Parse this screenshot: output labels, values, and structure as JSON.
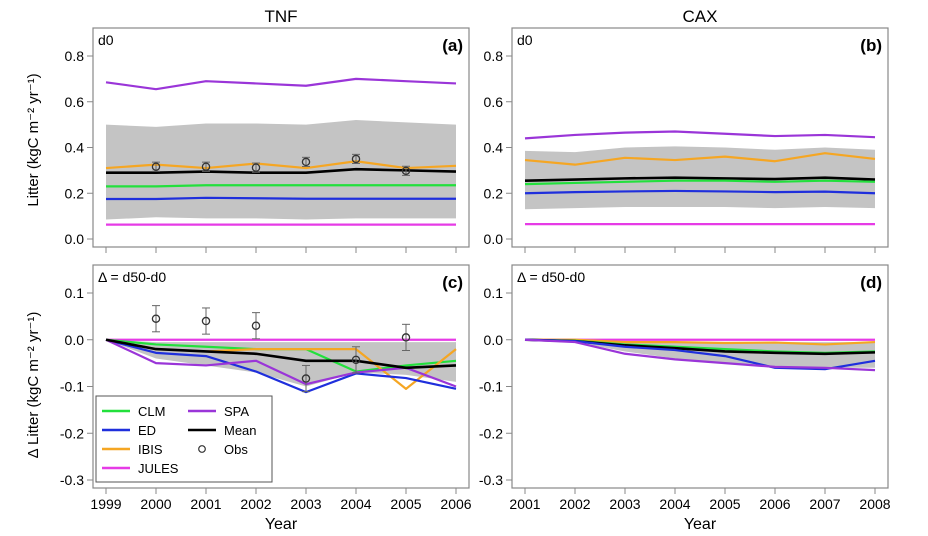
{
  "columns": [
    {
      "title": "TNF",
      "years": [
        1999,
        2000,
        2001,
        2002,
        2003,
        2004,
        2005,
        2006
      ]
    },
    {
      "title": "CAX",
      "years": [
        2001,
        2002,
        2003,
        2004,
        2005,
        2006,
        2007,
        2008
      ]
    }
  ],
  "xlabel": "Year",
  "ylabel_top": "Litter (kgC m⁻² yr⁻¹)",
  "ylabel_bottom": "Δ Litter (kgC m⁻² yr⁻¹)",
  "colors": {
    "CLM": "#22e03c",
    "ED": "#1f2fdc",
    "IBIS": "#f5a623",
    "JULES": "#e63be6",
    "SPA": "#9a35d8",
    "Mean": "#000000",
    "Obs": "#555555",
    "band": "#c4c4c4"
  },
  "legend": {
    "entries": [
      {
        "label": "CLM",
        "series": "CLM",
        "kind": "line"
      },
      {
        "label": "SPA",
        "series": "SPA",
        "kind": "line"
      },
      {
        "label": "ED",
        "series": "ED",
        "kind": "line"
      },
      {
        "label": "Mean",
        "series": "Mean",
        "kind": "line"
      },
      {
        "label": "IBIS",
        "series": "IBIS",
        "kind": "line"
      },
      {
        "label": "Obs",
        "series": "Obs",
        "kind": "marker"
      },
      {
        "label": "JULES",
        "series": "JULES",
        "kind": "line"
      }
    ]
  },
  "chart_data": [
    {
      "type": "line",
      "panel": "(a)",
      "annotation": "d0",
      "column": "TNF",
      "x": [
        1999,
        2000,
        2001,
        2002,
        2003,
        2004,
        2005,
        2006
      ],
      "xlim": [
        1999,
        2006
      ],
      "ylim": [
        0.0,
        0.8
      ],
      "yticks": [
        0.0,
        0.2,
        0.4,
        0.6,
        0.8
      ],
      "band": {
        "upper": [
          0.5,
          0.49,
          0.505,
          0.505,
          0.5,
          0.52,
          0.51,
          0.5
        ],
        "lower": [
          0.085,
          0.095,
          0.09,
          0.09,
          0.085,
          0.09,
          0.09,
          0.09
        ]
      },
      "series": [
        {
          "name": "SPA",
          "values": [
            0.685,
            0.655,
            0.69,
            0.68,
            0.67,
            0.7,
            0.69,
            0.68
          ]
        },
        {
          "name": "IBIS",
          "values": [
            0.31,
            0.325,
            0.31,
            0.33,
            0.31,
            0.34,
            0.31,
            0.32
          ]
        },
        {
          "name": "Mean",
          "values": [
            0.29,
            0.29,
            0.295,
            0.29,
            0.29,
            0.305,
            0.3,
            0.295
          ]
        },
        {
          "name": "CLM",
          "values": [
            0.23,
            0.23,
            0.235,
            0.235,
            0.235,
            0.235,
            0.235,
            0.235
          ]
        },
        {
          "name": "ED",
          "values": [
            0.175,
            0.175,
            0.18,
            0.178,
            0.176,
            0.176,
            0.176,
            0.176
          ]
        },
        {
          "name": "JULES",
          "values": [
            0.063,
            0.063,
            0.063,
            0.063,
            0.063,
            0.063,
            0.063,
            0.063
          ]
        }
      ],
      "obs": {
        "x": [
          2000,
          2001,
          2002,
          2003,
          2004,
          2005
        ],
        "y": [
          0.316,
          0.316,
          0.312,
          0.337,
          0.35,
          0.298
        ],
        "err": [
          0.02,
          0.02,
          0.02,
          0.02,
          0.02,
          0.02
        ]
      }
    },
    {
      "type": "line",
      "panel": "(b)",
      "annotation": "d0",
      "column": "CAX",
      "x": [
        2001,
        2002,
        2003,
        2004,
        2005,
        2006,
        2007,
        2008
      ],
      "xlim": [
        2001,
        2008
      ],
      "ylim": [
        0.0,
        0.8
      ],
      "yticks": [
        0.0,
        0.2,
        0.4,
        0.6,
        0.8
      ],
      "band": {
        "upper": [
          0.385,
          0.38,
          0.4,
          0.405,
          0.4,
          0.39,
          0.4,
          0.39
        ],
        "lower": [
          0.13,
          0.135,
          0.14,
          0.14,
          0.14,
          0.135,
          0.14,
          0.135
        ]
      },
      "series": [
        {
          "name": "SPA",
          "values": [
            0.44,
            0.455,
            0.465,
            0.47,
            0.46,
            0.45,
            0.455,
            0.445
          ]
        },
        {
          "name": "IBIS",
          "values": [
            0.345,
            0.325,
            0.355,
            0.345,
            0.36,
            0.34,
            0.375,
            0.35
          ]
        },
        {
          "name": "Mean",
          "values": [
            0.255,
            0.26,
            0.265,
            0.268,
            0.265,
            0.262,
            0.268,
            0.26
          ]
        },
        {
          "name": "CLM",
          "values": [
            0.24,
            0.245,
            0.25,
            0.255,
            0.255,
            0.25,
            0.255,
            0.25
          ]
        },
        {
          "name": "ED",
          "values": [
            0.2,
            0.205,
            0.208,
            0.21,
            0.208,
            0.205,
            0.207,
            0.2
          ]
        },
        {
          "name": "JULES",
          "values": [
            0.065,
            0.065,
            0.065,
            0.065,
            0.065,
            0.065,
            0.065,
            0.065
          ]
        }
      ]
    },
    {
      "type": "line",
      "panel": "(c)",
      "annotation": "Δ = d50-d0",
      "column": "TNF",
      "x": [
        1999,
        2000,
        2001,
        2002,
        2003,
        2004,
        2005,
        2006
      ],
      "xlim": [
        1999,
        2006
      ],
      "ylim": [
        -0.3,
        0.1
      ],
      "yticks": [
        -0.3,
        -0.2,
        -0.1,
        0.0,
        0.1
      ],
      "band": {
        "upper": [
          0.0,
          -0.005,
          -0.005,
          -0.005,
          -0.005,
          -0.005,
          -0.005,
          -0.005
        ],
        "lower": [
          0.0,
          -0.04,
          -0.055,
          -0.07,
          -0.1,
          -0.07,
          -0.075,
          -0.09
        ]
      },
      "series": [
        {
          "name": "JULES",
          "values": [
            0.0,
            0.0,
            0.0,
            0.0,
            0.0,
            0.0,
            0.0,
            0.0
          ]
        },
        {
          "name": "CLM",
          "values": [
            0.0,
            -0.01,
            -0.015,
            -0.02,
            -0.02,
            -0.068,
            -0.055,
            -0.045
          ]
        },
        {
          "name": "IBIS",
          "values": [
            0.0,
            -0.02,
            -0.025,
            -0.02,
            -0.02,
            -0.02,
            -0.105,
            -0.02
          ]
        },
        {
          "name": "ED",
          "values": [
            0.0,
            -0.028,
            -0.035,
            -0.068,
            -0.112,
            -0.072,
            -0.082,
            -0.105
          ]
        },
        {
          "name": "SPA",
          "values": [
            0.0,
            -0.05,
            -0.055,
            -0.045,
            -0.095,
            -0.07,
            -0.06,
            -0.1
          ]
        },
        {
          "name": "Mean",
          "values": [
            0.0,
            -0.02,
            -0.025,
            -0.03,
            -0.045,
            -0.045,
            -0.06,
            -0.055
          ]
        }
      ],
      "obs": {
        "x": [
          2000,
          2001,
          2002,
          2003,
          2004,
          2005
        ],
        "y": [
          0.045,
          0.04,
          0.03,
          -0.083,
          -0.043,
          0.005
        ],
        "err": [
          0.028,
          0.028,
          0.028,
          0.028,
          0.028,
          0.028
        ]
      }
    },
    {
      "type": "line",
      "panel": "(d)",
      "annotation": "Δ = d50-d0",
      "column": "CAX",
      "x": [
        2001,
        2002,
        2003,
        2004,
        2005,
        2006,
        2007,
        2008
      ],
      "xlim": [
        2001,
        2008
      ],
      "ylim": [
        -0.3,
        0.1
      ],
      "yticks": [
        -0.3,
        -0.2,
        -0.1,
        0.0,
        0.1
      ],
      "band": {
        "upper": [
          0.0,
          0.0,
          -0.003,
          -0.005,
          -0.005,
          -0.005,
          -0.005,
          -0.005
        ],
        "lower": [
          0.0,
          -0.005,
          -0.025,
          -0.04,
          -0.05,
          -0.058,
          -0.06,
          -0.06
        ]
      },
      "series": [
        {
          "name": "JULES",
          "values": [
            0.0,
            0.0,
            0.0,
            0.0,
            0.0,
            0.0,
            0.0,
            0.0
          ]
        },
        {
          "name": "IBIS",
          "values": [
            0.0,
            0.0,
            -0.005,
            -0.005,
            -0.007,
            -0.006,
            -0.01,
            -0.005
          ]
        },
        {
          "name": "CLM",
          "values": [
            0.0,
            -0.002,
            -0.01,
            -0.015,
            -0.02,
            -0.025,
            -0.028,
            -0.025
          ]
        },
        {
          "name": "Mean",
          "values": [
            0.0,
            -0.003,
            -0.012,
            -0.018,
            -0.025,
            -0.028,
            -0.03,
            -0.027
          ]
        },
        {
          "name": "ED",
          "values": [
            0.0,
            -0.003,
            -0.015,
            -0.022,
            -0.035,
            -0.06,
            -0.063,
            -0.045
          ]
        },
        {
          "name": "SPA",
          "values": [
            0.0,
            -0.005,
            -0.03,
            -0.042,
            -0.05,
            -0.058,
            -0.06,
            -0.065
          ]
        }
      ]
    }
  ]
}
